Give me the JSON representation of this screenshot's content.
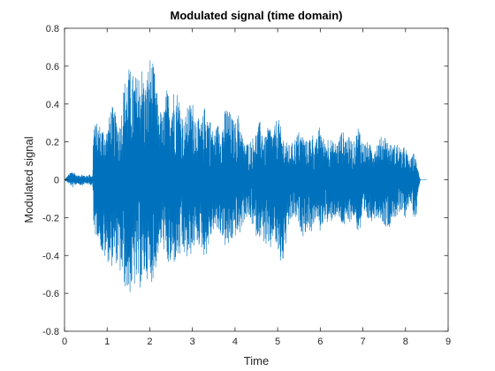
{
  "chart_data": {
    "type": "line",
    "title": "Modulated signal (time domain)",
    "xlabel": "Time",
    "ylabel": "Modulated signal",
    "xlim": [
      0,
      9
    ],
    "ylim": [
      -0.8,
      0.8
    ],
    "xticks": [
      0,
      1,
      2,
      3,
      4,
      5,
      6,
      7,
      8,
      9
    ],
    "yticks": [
      -0.8,
      -0.6,
      -0.4,
      -0.2,
      0,
      0.2,
      0.4,
      0.6,
      0.8
    ],
    "grid": false,
    "line_color": "#0072BD",
    "series": [
      {
        "envelope": {
          "x": [
            0.0,
            0.1,
            0.2,
            0.3,
            0.4,
            0.5,
            0.6,
            0.66,
            0.68,
            0.72,
            0.8,
            0.9,
            1.0,
            1.1,
            1.2,
            1.3,
            1.4,
            1.5,
            1.6,
            1.7,
            1.8,
            1.9,
            2.0,
            2.1,
            2.2,
            2.3,
            2.4,
            2.5,
            2.6,
            2.7,
            2.8,
            2.9,
            3.0,
            3.1,
            3.2,
            3.3,
            3.4,
            3.5,
            3.6,
            3.7,
            3.8,
            3.9,
            4.0,
            4.1,
            4.2,
            4.3,
            4.4,
            4.5,
            4.6,
            4.7,
            4.8,
            4.9,
            5.0,
            5.1,
            5.2,
            5.3,
            5.4,
            5.5,
            5.6,
            5.7,
            5.8,
            5.9,
            6.0,
            6.1,
            6.2,
            6.3,
            6.4,
            6.5,
            6.6,
            6.7,
            6.8,
            6.9,
            7.0,
            7.1,
            7.2,
            7.3,
            7.4,
            7.5,
            7.6,
            7.7,
            7.8,
            7.9,
            8.0,
            8.05,
            8.1,
            8.15,
            8.2,
            8.25,
            8.3,
            8.35,
            8.4,
            8.5
          ],
          "upper": [
            0.0,
            0.03,
            0.05,
            0.02,
            0.03,
            0.02,
            0.03,
            0.02,
            0.34,
            0.3,
            0.3,
            0.28,
            0.27,
            0.4,
            0.35,
            0.3,
            0.52,
            0.6,
            0.56,
            0.55,
            0.62,
            0.5,
            0.66,
            0.6,
            0.4,
            0.34,
            0.48,
            0.46,
            0.5,
            0.44,
            0.3,
            0.4,
            0.42,
            0.34,
            0.3,
            0.4,
            0.34,
            0.25,
            0.3,
            0.3,
            0.4,
            0.35,
            0.3,
            0.36,
            0.2,
            0.2,
            0.22,
            0.26,
            0.32,
            0.22,
            0.3,
            0.25,
            0.35,
            0.25,
            0.2,
            0.18,
            0.22,
            0.26,
            0.24,
            0.2,
            0.26,
            0.2,
            0.3,
            0.2,
            0.24,
            0.2,
            0.2,
            0.26,
            0.24,
            0.22,
            0.2,
            0.3,
            0.2,
            0.2,
            0.18,
            0.2,
            0.22,
            0.25,
            0.2,
            0.18,
            0.2,
            0.16,
            0.18,
            0.13,
            0.1,
            0.12,
            0.15,
            0.1,
            0.05,
            0.0,
            0.0,
            0.0
          ],
          "lower": [
            0.0,
            -0.02,
            -0.04,
            -0.02,
            -0.03,
            -0.02,
            -0.03,
            -0.02,
            -0.32,
            -0.3,
            -0.3,
            -0.42,
            -0.43,
            -0.46,
            -0.44,
            -0.5,
            -0.56,
            -0.62,
            -0.58,
            -0.56,
            -0.58,
            -0.5,
            -0.56,
            -0.52,
            -0.4,
            -0.34,
            -0.46,
            -0.47,
            -0.44,
            -0.42,
            -0.4,
            -0.44,
            -0.38,
            -0.34,
            -0.36,
            -0.42,
            -0.34,
            -0.26,
            -0.28,
            -0.3,
            -0.38,
            -0.34,
            -0.3,
            -0.3,
            -0.22,
            -0.2,
            -0.24,
            -0.3,
            -0.3,
            -0.34,
            -0.42,
            -0.3,
            -0.4,
            -0.48,
            -0.34,
            -0.22,
            -0.2,
            -0.24,
            -0.3,
            -0.26,
            -0.28,
            -0.2,
            -0.28,
            -0.2,
            -0.26,
            -0.2,
            -0.2,
            -0.24,
            -0.26,
            -0.22,
            -0.2,
            -0.3,
            -0.22,
            -0.22,
            -0.22,
            -0.2,
            -0.2,
            -0.24,
            -0.26,
            -0.2,
            -0.2,
            -0.18,
            -0.2,
            -0.15,
            -0.12,
            -0.15,
            -0.2,
            -0.2,
            -0.05,
            0.0,
            0.0,
            0.0
          ]
        }
      }
    ]
  }
}
